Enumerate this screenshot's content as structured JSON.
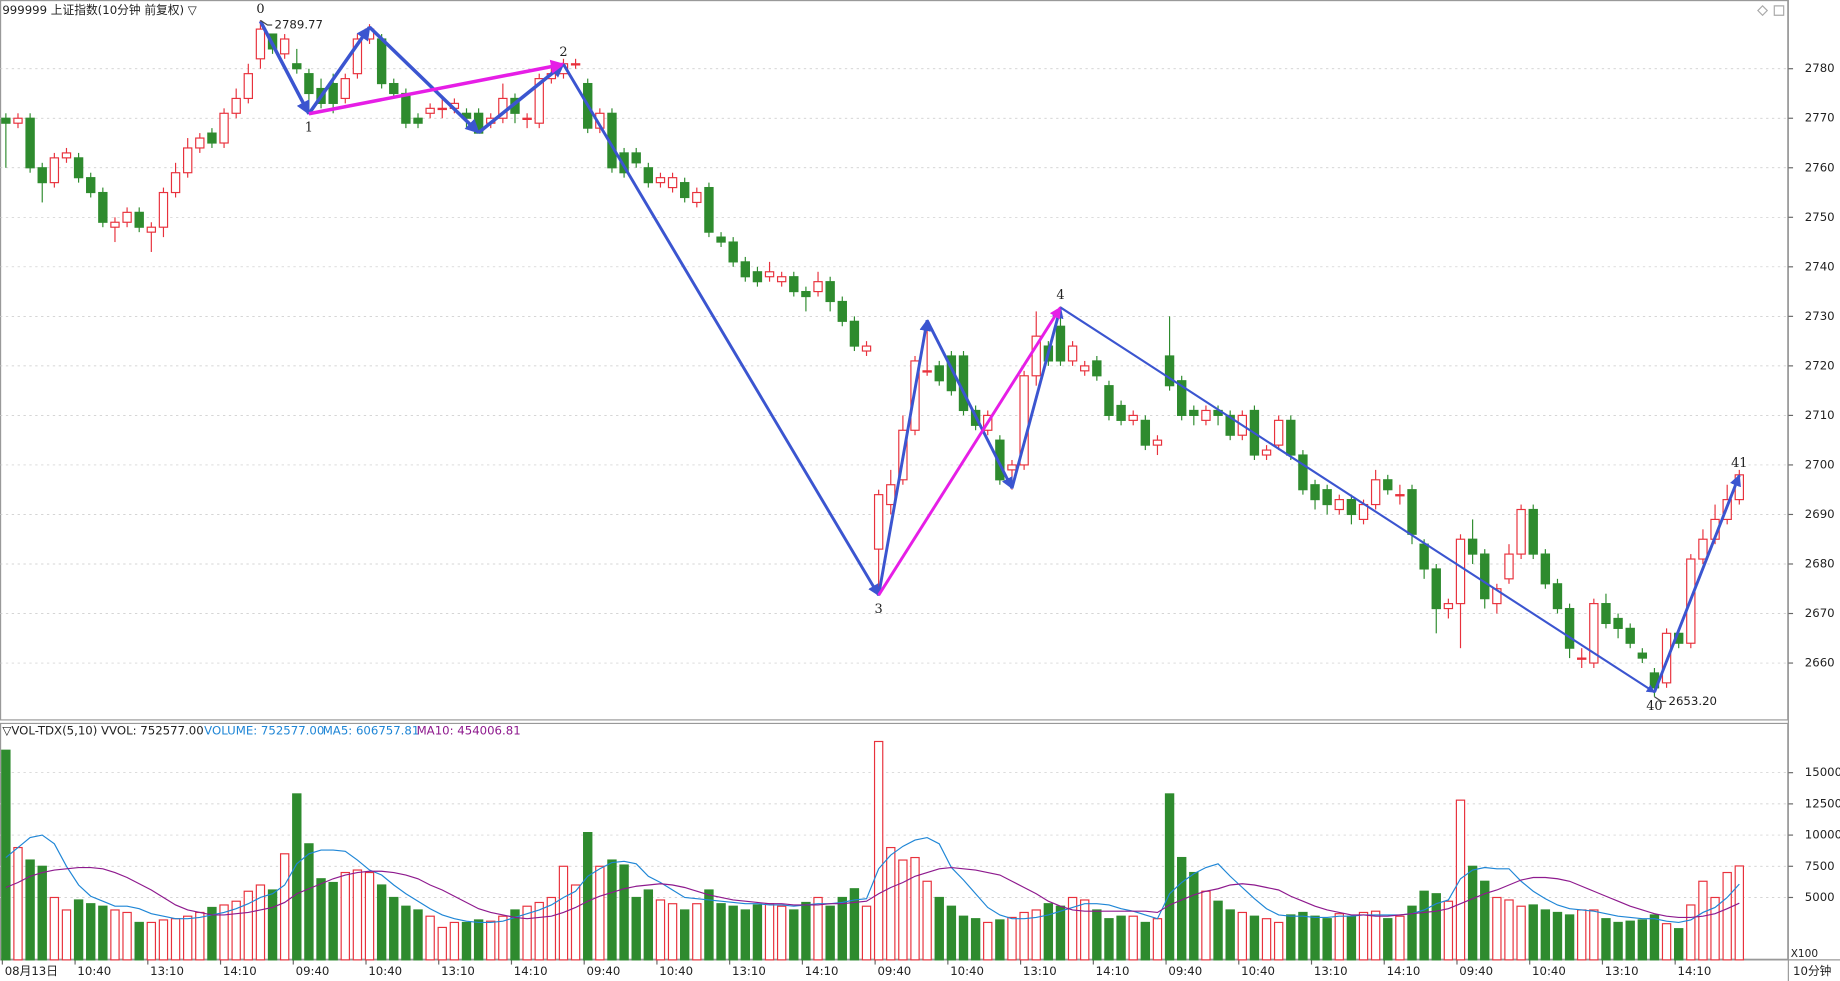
{
  "chart_data": {
    "type": "candlestick",
    "title": "999999 上证指数(10分钟 前复权) ▽",
    "period_label": "10分钟",
    "categories": [
      "08月13日",
      null,
      null,
      null,
      null,
      null,
      "10:40",
      null,
      null,
      null,
      null,
      null,
      "13:10",
      null,
      null,
      null,
      null,
      null,
      "14:10",
      null,
      null,
      null,
      null,
      null,
      "09:40",
      null,
      null,
      null,
      null,
      null,
      "10:40",
      null,
      null,
      null,
      null,
      null,
      "13:10",
      null,
      null,
      null,
      null,
      null,
      "14:10",
      null,
      null,
      null,
      null,
      null,
      "09:40",
      null,
      null,
      null,
      null,
      null,
      "10:40",
      null,
      null,
      null,
      null,
      null,
      "13:10",
      null,
      null,
      null,
      null,
      null,
      "14:10",
      null,
      null,
      null,
      null,
      null,
      "09:40",
      null,
      null,
      null,
      null,
      null,
      "10:40",
      null,
      null,
      null,
      null,
      null,
      "13:10",
      null,
      null,
      null,
      null,
      null,
      "14:10",
      null,
      null,
      null,
      null,
      null,
      "09:40",
      null,
      null,
      null,
      null,
      null,
      "10:40",
      null,
      null,
      null,
      null,
      null,
      "13:10",
      null,
      null,
      null,
      null,
      null,
      "14:10",
      null,
      null,
      null,
      null,
      null,
      "09:40",
      null,
      null,
      null,
      null,
      null,
      "10:40",
      null,
      null,
      null,
      null,
      null,
      "13:10",
      null,
      null,
      null,
      null,
      null,
      "14:10",
      null,
      null,
      null,
      null,
      null
    ],
    "open": [
      2770,
      2769,
      2770,
      2760,
      2757,
      2762,
      2762,
      2758,
      2755,
      2748,
      2749,
      2751,
      2747,
      2748,
      2755,
      2759,
      2764,
      2767,
      2765,
      2771,
      2774,
      2782,
      2787,
      2783,
      2781,
      2779,
      2776,
      2777,
      2774,
      2779,
      2786,
      2786,
      2777,
      2775,
      2770,
      2771,
      2772,
      2772,
      2771,
      2771,
      2769,
      2770,
      2774,
      2770,
      2769,
      2778,
      2779,
      2781,
      2777,
      2768,
      2771,
      2763,
      2763,
      2760,
      2757,
      2756,
      2757,
      2753,
      2756,
      2746,
      2745,
      2741,
      2739,
      2738,
      2737,
      2738,
      2735,
      2735,
      2737,
      2733,
      2729,
      2723,
      2683,
      2692,
      2697,
      2707,
      2719,
      2720,
      2722,
      2722,
      2711,
      2707,
      2705,
      2699,
      2700,
      2718,
      2724,
      2728,
      2721,
      2719,
      2721,
      2716,
      2712,
      2709,
      2709,
      2704,
      2722,
      2717,
      2711,
      2709,
      2711,
      2710,
      2706,
      2711,
      2702,
      2704,
      2709,
      2702,
      2696,
      2695,
      2691,
      2693,
      2689,
      2692,
      2697,
      2694,
      2695,
      2684,
      2679,
      2671,
      2672,
      2685,
      2682,
      2672,
      2677,
      2682,
      2691,
      2682,
      2676,
      2671,
      2661,
      2660,
      2672,
      2669,
      2667,
      2662,
      2658,
      2656,
      2666,
      2664,
      2681,
      2685,
      2689,
      2693
    ],
    "high": [
      2771,
      2771,
      2771,
      2761,
      2763,
      2764,
      2763,
      2759,
      2756,
      2750,
      2752,
      2752,
      2749,
      2756,
      2761,
      2766,
      2767,
      2768,
      2772,
      2776,
      2781,
      2789.77,
      2787,
      2787,
      2784,
      2780,
      2778,
      2779,
      2779,
      2787,
      2789,
      2787,
      2778,
      2776,
      2771,
      2773,
      2774,
      2774,
      2772,
      2772,
      2771,
      2777,
      2775,
      2771,
      2779,
      2780,
      2782,
      2782,
      2778,
      2772,
      2772,
      2764,
      2764,
      2761,
      2759,
      2759,
      2758,
      2756,
      2757,
      2747,
      2746,
      2742,
      2740,
      2741,
      2739,
      2739,
      2736,
      2739,
      2738,
      2734,
      2730,
      2725,
      2695,
      2699,
      2710,
      2722,
      2729,
      2721,
      2723,
      2723,
      2712,
      2711,
      2706,
      2701,
      2719,
      2731,
      2725,
      2732,
      2725,
      2721,
      2722,
      2717,
      2713,
      2711,
      2710,
      2706,
      2730,
      2718,
      2712,
      2712,
      2712,
      2711,
      2711,
      2712,
      2704,
      2710,
      2710,
      2703,
      2697,
      2696,
      2694,
      2694,
      2693,
      2699,
      2698,
      2696,
      2696,
      2685,
      2680,
      2673,
      2686,
      2689,
      2683,
      2676,
      2684,
      2692,
      2692,
      2683,
      2677,
      2672,
      2663,
      2673,
      2674,
      2670,
      2668,
      2663,
      2659,
      2667,
      2667,
      2682,
      2687,
      2692,
      2696,
      2699
    ],
    "low": [
      2760,
      2768,
      2759,
      2753,
      2756,
      2761,
      2757,
      2754,
      2748,
      2745,
      2748,
      2747,
      2743,
      2746,
      2754,
      2758,
      2763,
      2764,
      2764,
      2770,
      2773,
      2780,
      2783,
      2782,
      2779,
      2771,
      2772,
      2771,
      2773,
      2778,
      2785,
      2776,
      2774,
      2768,
      2768,
      2770,
      2770,
      2771,
      2768,
      2767,
      2768,
      2769,
      2769,
      2768,
      2768,
      2777,
      2778,
      2780,
      2767,
      2767,
      2759,
      2758,
      2760,
      2756,
      2756,
      2755,
      2753,
      2752,
      2746,
      2744,
      2740,
      2737,
      2736,
      2737,
      2736,
      2734,
      2731,
      2734,
      2731,
      2728,
      2723,
      2722,
      2674,
      2690,
      2696,
      2706,
      2718,
      2716,
      2714,
      2710,
      2707,
      2706,
      2696,
      2695,
      2699,
      2716,
      2720,
      2720,
      2720,
      2718,
      2717,
      2709,
      2708,
      2708,
      2703,
      2702,
      2715,
      2709,
      2708,
      2708,
      2708,
      2705,
      2705,
      2701,
      2701,
      2703,
      2701,
      2694,
      2691,
      2690,
      2690,
      2688,
      2688,
      2691,
      2694,
      2692,
      2684,
      2677,
      2666,
      2669,
      2663,
      2680,
      2671,
      2670,
      2676,
      2681,
      2681,
      2675,
      2670,
      2661,
      2659,
      2659,
      2667,
      2665,
      2663,
      2660,
      2653.2,
      2655,
      2663,
      2663,
      2680,
      2684,
      2688,
      2692
    ],
    "close": [
      2769,
      2770,
      2760,
      2757,
      2762,
      2763,
      2758,
      2755,
      2749,
      2749,
      2751,
      2748,
      2748,
      2755,
      2759,
      2764,
      2766,
      2765,
      2771,
      2774,
      2779,
      2788,
      2784,
      2786,
      2780,
      2775,
      2773,
      2773,
      2778,
      2786,
      2788,
      2777,
      2775,
      2769,
      2769,
      2772,
      2772,
      2773,
      2770,
      2767,
      2770,
      2774,
      2771,
      2770,
      2778,
      2779,
      2781,
      2781,
      2768,
      2771,
      2760,
      2759,
      2761,
      2757,
      2758,
      2758,
      2754,
      2755,
      2747,
      2745,
      2741,
      2738,
      2737,
      2739,
      2738,
      2735,
      2734,
      2737,
      2733,
      2729,
      2724,
      2724,
      2694,
      2696,
      2707,
      2721,
      2719,
      2717,
      2715,
      2711,
      2708,
      2710,
      2697,
      2700,
      2718,
      2726,
      2721,
      2721,
      2724,
      2720,
      2718,
      2710,
      2709,
      2710,
      2704,
      2705,
      2716,
      2710,
      2710,
      2711,
      2710,
      2706,
      2710,
      2702,
      2703,
      2709,
      2702,
      2695,
      2693,
      2692,
      2693,
      2690,
      2692,
      2697,
      2695,
      2694,
      2686,
      2679,
      2671,
      2672,
      2685,
      2682,
      2673,
      2675,
      2682,
      2691,
      2682,
      2676,
      2671,
      2663,
      2661,
      2672,
      2668,
      2667,
      2664,
      2661,
      2655,
      2666,
      2664,
      2681,
      2685,
      2689,
      2693,
      2698
    ],
    "up_color": "#e8313c",
    "down_color": "#2e8b2e",
    "ylim": [
      2648.4,
      2793.4
    ],
    "yticks": [
      2660,
      2670,
      2680,
      2690,
      2700,
      2710,
      2720,
      2730,
      2740,
      2750,
      2760,
      2770,
      2780
    ],
    "grid": true,
    "high_label": "2789.77",
    "low_label": "2653.20",
    "wave_color": "#3b55d0",
    "link_color": "#e61ee6",
    "pivots": [
      {
        "label": "0",
        "bar": 21,
        "price": 2789.6
      },
      {
        "label": "1",
        "bar": 25,
        "price": 2770.9
      },
      {
        "label": null,
        "bar": 30,
        "price": 2788.4
      },
      {
        "label": null,
        "bar": 39,
        "price": 2767.1
      },
      {
        "label": "2",
        "bar": 46,
        "price": 2780.9
      },
      {
        "label": "3",
        "bar": 72,
        "price": 2673.7
      },
      {
        "label": null,
        "bar": 76,
        "price": 2729.2
      },
      {
        "label": null,
        "bar": 83,
        "price": 2695.3
      },
      {
        "label": "4",
        "bar": 87,
        "price": 2731.8
      },
      {
        "label": "40",
        "bar": 136,
        "price": 2654.1
      },
      {
        "label": "41",
        "bar": 143,
        "price": 2697.9
      }
    ],
    "volume_panel": {
      "title": "▽VOL-TDX(5,10) VVOL: 752577.00",
      "volume_label": "VOLUME: 752577.00",
      "ma5_label": "MA5: 606757.81",
      "ma10_label": "MA10: 454006.81",
      "unit_label": "X100",
      "ma5_color": "#1f86d6",
      "ma10_color": "#8e1a8e",
      "ylim": [
        0,
        18900
      ],
      "yticks": [
        5000,
        7500,
        10000,
        12500,
        15000
      ],
      "volume": [
        16800,
        9000,
        8000,
        7500,
        5000,
        4000,
        4800,
        4500,
        4300,
        4000,
        3800,
        3000,
        3000,
        3200,
        3300,
        3500,
        3800,
        4200,
        4400,
        4700,
        5500,
        6000,
        5600,
        8500,
        13300,
        9300,
        6500,
        6200,
        7000,
        7200,
        7000,
        6000,
        5000,
        4300,
        4000,
        3500,
        2600,
        3000,
        3000,
        3200,
        3100,
        3500,
        4000,
        4300,
        4600,
        5000,
        7500,
        6000,
        10200,
        7500,
        8000,
        7600,
        5000,
        5600,
        4800,
        4500,
        4000,
        4500,
        5600,
        4500,
        4300,
        4000,
        4400,
        4500,
        4300,
        4000,
        4600,
        5000,
        4300,
        5000,
        5700,
        4300,
        17500,
        9000,
        8000,
        8200,
        6300,
        5000,
        4300,
        3500,
        3300,
        3000,
        3200,
        3400,
        3800,
        4000,
        4500,
        4300,
        5000,
        4800,
        4000,
        3300,
        3500,
        3500,
        3000,
        3300,
        13300,
        8200,
        7000,
        5500,
        4700,
        4000,
        3800,
        3500,
        3300,
        3000,
        3600,
        3800,
        3500,
        3300,
        3700,
        3500,
        3800,
        3900,
        3300,
        3500,
        4300,
        5500,
        5300,
        4700,
        12800,
        7500,
        6300,
        5000,
        4800,
        4300,
        4400,
        4000,
        3800,
        3600,
        4000,
        4000,
        3300,
        3000,
        3100,
        3200,
        3600,
        2900,
        2500,
        4400,
        6300,
        5000,
        7000,
        7525.77
      ],
      "ma5": [
        8200,
        9000,
        9800,
        10000,
        9300,
        7500,
        6000,
        5100,
        4700,
        4300,
        4300,
        4100,
        3700,
        3500,
        3300,
        3300,
        3400,
        3600,
        3800,
        4100,
        4500,
        5000,
        5300,
        6000,
        7700,
        8500,
        8800,
        8800,
        8700,
        8000,
        7200,
        6800,
        6000,
        5300,
        4700,
        4100,
        3600,
        3300,
        3100,
        3000,
        3000,
        3100,
        3400,
        3700,
        4000,
        4400,
        5000,
        5500,
        6700,
        7300,
        7800,
        7900,
        7700,
        6700,
        6200,
        5600,
        5000,
        4900,
        4800,
        4700,
        4600,
        4500,
        4500,
        4400,
        4400,
        4300,
        4400,
        4500,
        4500,
        4600,
        4800,
        4900,
        7300,
        8400,
        9100,
        9600,
        9800,
        9300,
        7400,
        6400,
        5300,
        4200,
        3600,
        3300,
        3300,
        3400,
        3600,
        3900,
        4200,
        4500,
        4500,
        4400,
        4100,
        3900,
        3600,
        3300,
        5300,
        6200,
        6900,
        7400,
        7700,
        6700,
        5800,
        4900,
        4100,
        3600,
        3500,
        3500,
        3400,
        3400,
        3500,
        3500,
        3600,
        3600,
        3600,
        3600,
        3700,
        4000,
        4500,
        4800,
        6500,
        7200,
        7400,
        7300,
        7300,
        6300,
        5500,
        4900,
        4400,
        4100,
        4000,
        3900,
        3700,
        3500,
        3400,
        3300,
        3300,
        3100,
        3000,
        3200,
        3800,
        4200,
        5000,
        6067.58
      ],
      "ma10": [
        5800,
        6200,
        6700,
        7000,
        7200,
        7300,
        7400,
        7400,
        7300,
        7000,
        6600,
        6100,
        5600,
        5000,
        4400,
        4000,
        3800,
        3600,
        3600,
        3700,
        3800,
        4000,
        4200,
        4600,
        5300,
        5700,
        6100,
        6500,
        6800,
        7000,
        7100,
        7100,
        7000,
        6800,
        6500,
        6000,
        5600,
        5100,
        4600,
        4100,
        3800,
        3600,
        3400,
        3300,
        3400,
        3500,
        3800,
        4200,
        4700,
        5100,
        5400,
        5700,
        5900,
        6000,
        6100,
        6000,
        5800,
        5500,
        5200,
        5000,
        4800,
        4700,
        4600,
        4500,
        4500,
        4400,
        4400,
        4400,
        4500,
        4500,
        4600,
        4700,
        5300,
        5800,
        6200,
        6700,
        7000,
        7300,
        7400,
        7300,
        7200,
        7000,
        6800,
        6300,
        5800,
        5300,
        4700,
        4300,
        4000,
        3900,
        3900,
        3900,
        3900,
        3900,
        3900,
        3800,
        4400,
        4800,
        5200,
        5500,
        5700,
        6000,
        6100,
        6000,
        5800,
        5600,
        5100,
        4700,
        4300,
        4000,
        3800,
        3600,
        3600,
        3500,
        3500,
        3600,
        3700,
        3800,
        3900,
        4100,
        4500,
        4900,
        5300,
        5600,
        6000,
        6400,
        6600,
        6600,
        6500,
        6300,
        5900,
        5500,
        5100,
        4700,
        4300,
        4000,
        3700,
        3500,
        3400,
        3400,
        3500,
        3700,
        4100,
        4540.07
      ]
    }
  }
}
